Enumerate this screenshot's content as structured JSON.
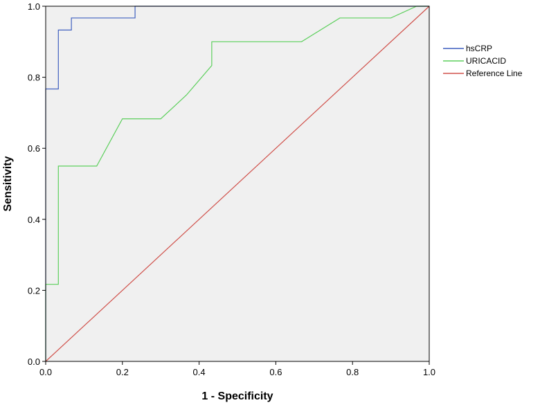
{
  "chart_data": {
    "type": "line",
    "title": "",
    "xlabel": "1 - Specificity",
    "ylabel": "Sensitivity",
    "xlim": [
      0,
      1
    ],
    "ylim": [
      0,
      1
    ],
    "x_ticks": [
      "0.0",
      "0.2",
      "0.4",
      "0.6",
      "0.8",
      "1.0"
    ],
    "y_ticks": [
      "0.0",
      "0.2",
      "0.4",
      "0.6",
      "0.8",
      "1.0"
    ],
    "grid": false,
    "legend_position": "right",
    "plot_background": "#f0f0f0",
    "series": [
      {
        "name": "hsCRP",
        "color": "#3f5fbf",
        "points": [
          [
            0.0,
            0.0
          ],
          [
            0.0,
            0.767
          ],
          [
            0.033,
            0.767
          ],
          [
            0.033,
            0.933
          ],
          [
            0.067,
            0.933
          ],
          [
            0.067,
            0.967
          ],
          [
            0.233,
            0.967
          ],
          [
            0.233,
            1.0
          ],
          [
            1.0,
            1.0
          ]
        ]
      },
      {
        "name": "URICACID",
        "color": "#5ccf5c",
        "points": [
          [
            0.0,
            0.0
          ],
          [
            0.0,
            0.217
          ],
          [
            0.033,
            0.217
          ],
          [
            0.033,
            0.55
          ],
          [
            0.133,
            0.55
          ],
          [
            0.2,
            0.683
          ],
          [
            0.3,
            0.683
          ],
          [
            0.367,
            0.75
          ],
          [
            0.433,
            0.833
          ],
          [
            0.433,
            0.9
          ],
          [
            0.667,
            0.9
          ],
          [
            0.767,
            0.967
          ],
          [
            0.9,
            0.967
          ],
          [
            0.967,
            1.0
          ],
          [
            1.0,
            1.0
          ]
        ]
      },
      {
        "name": "Reference Line",
        "color": "#d0504a",
        "points": [
          [
            0.0,
            0.0
          ],
          [
            1.0,
            1.0
          ]
        ]
      }
    ]
  }
}
